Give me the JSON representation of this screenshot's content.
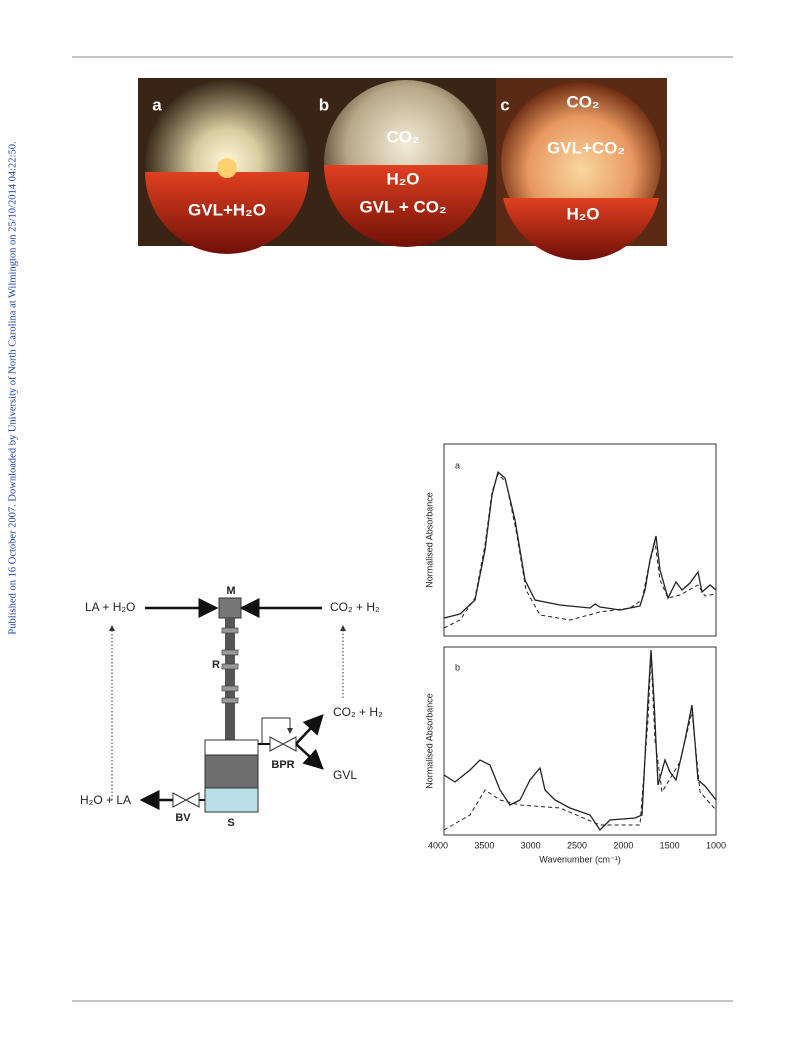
{
  "sidebar": "Published on 16 October 2007. Downloaded by University of North Carolina at Wilmington on 25/10/2014 04:22:50.",
  "photo": {
    "panels": [
      {
        "letter": "a",
        "labels": [
          "GVL+H₂O"
        ]
      },
      {
        "letter": "b",
        "labels": [
          "CO₂",
          "H₂O",
          "GVL + CO₂"
        ]
      },
      {
        "letter": "c",
        "labels": [
          "CO₂",
          "GVL+CO₂",
          "H₂O"
        ]
      }
    ]
  },
  "diagram": {
    "feed_left": "LA + H₂O",
    "feed_right": "CO₂ + H₂",
    "mixer": "M",
    "reactor": "R",
    "separator": "S",
    "bpr": "BPR",
    "bv": "BV",
    "out_gas": "CO₂ + H₂",
    "out_product": "GVL",
    "out_liquid": "H₂O + LA"
  },
  "spectra": {
    "panels": [
      "a",
      "b"
    ],
    "y_label": "Normalised Absorbance",
    "x_label": "Wavenumber (cm⁻¹)",
    "xticks": [
      "4000",
      "3500",
      "3000",
      "2500",
      "2000",
      "1500",
      "1000"
    ]
  }
}
